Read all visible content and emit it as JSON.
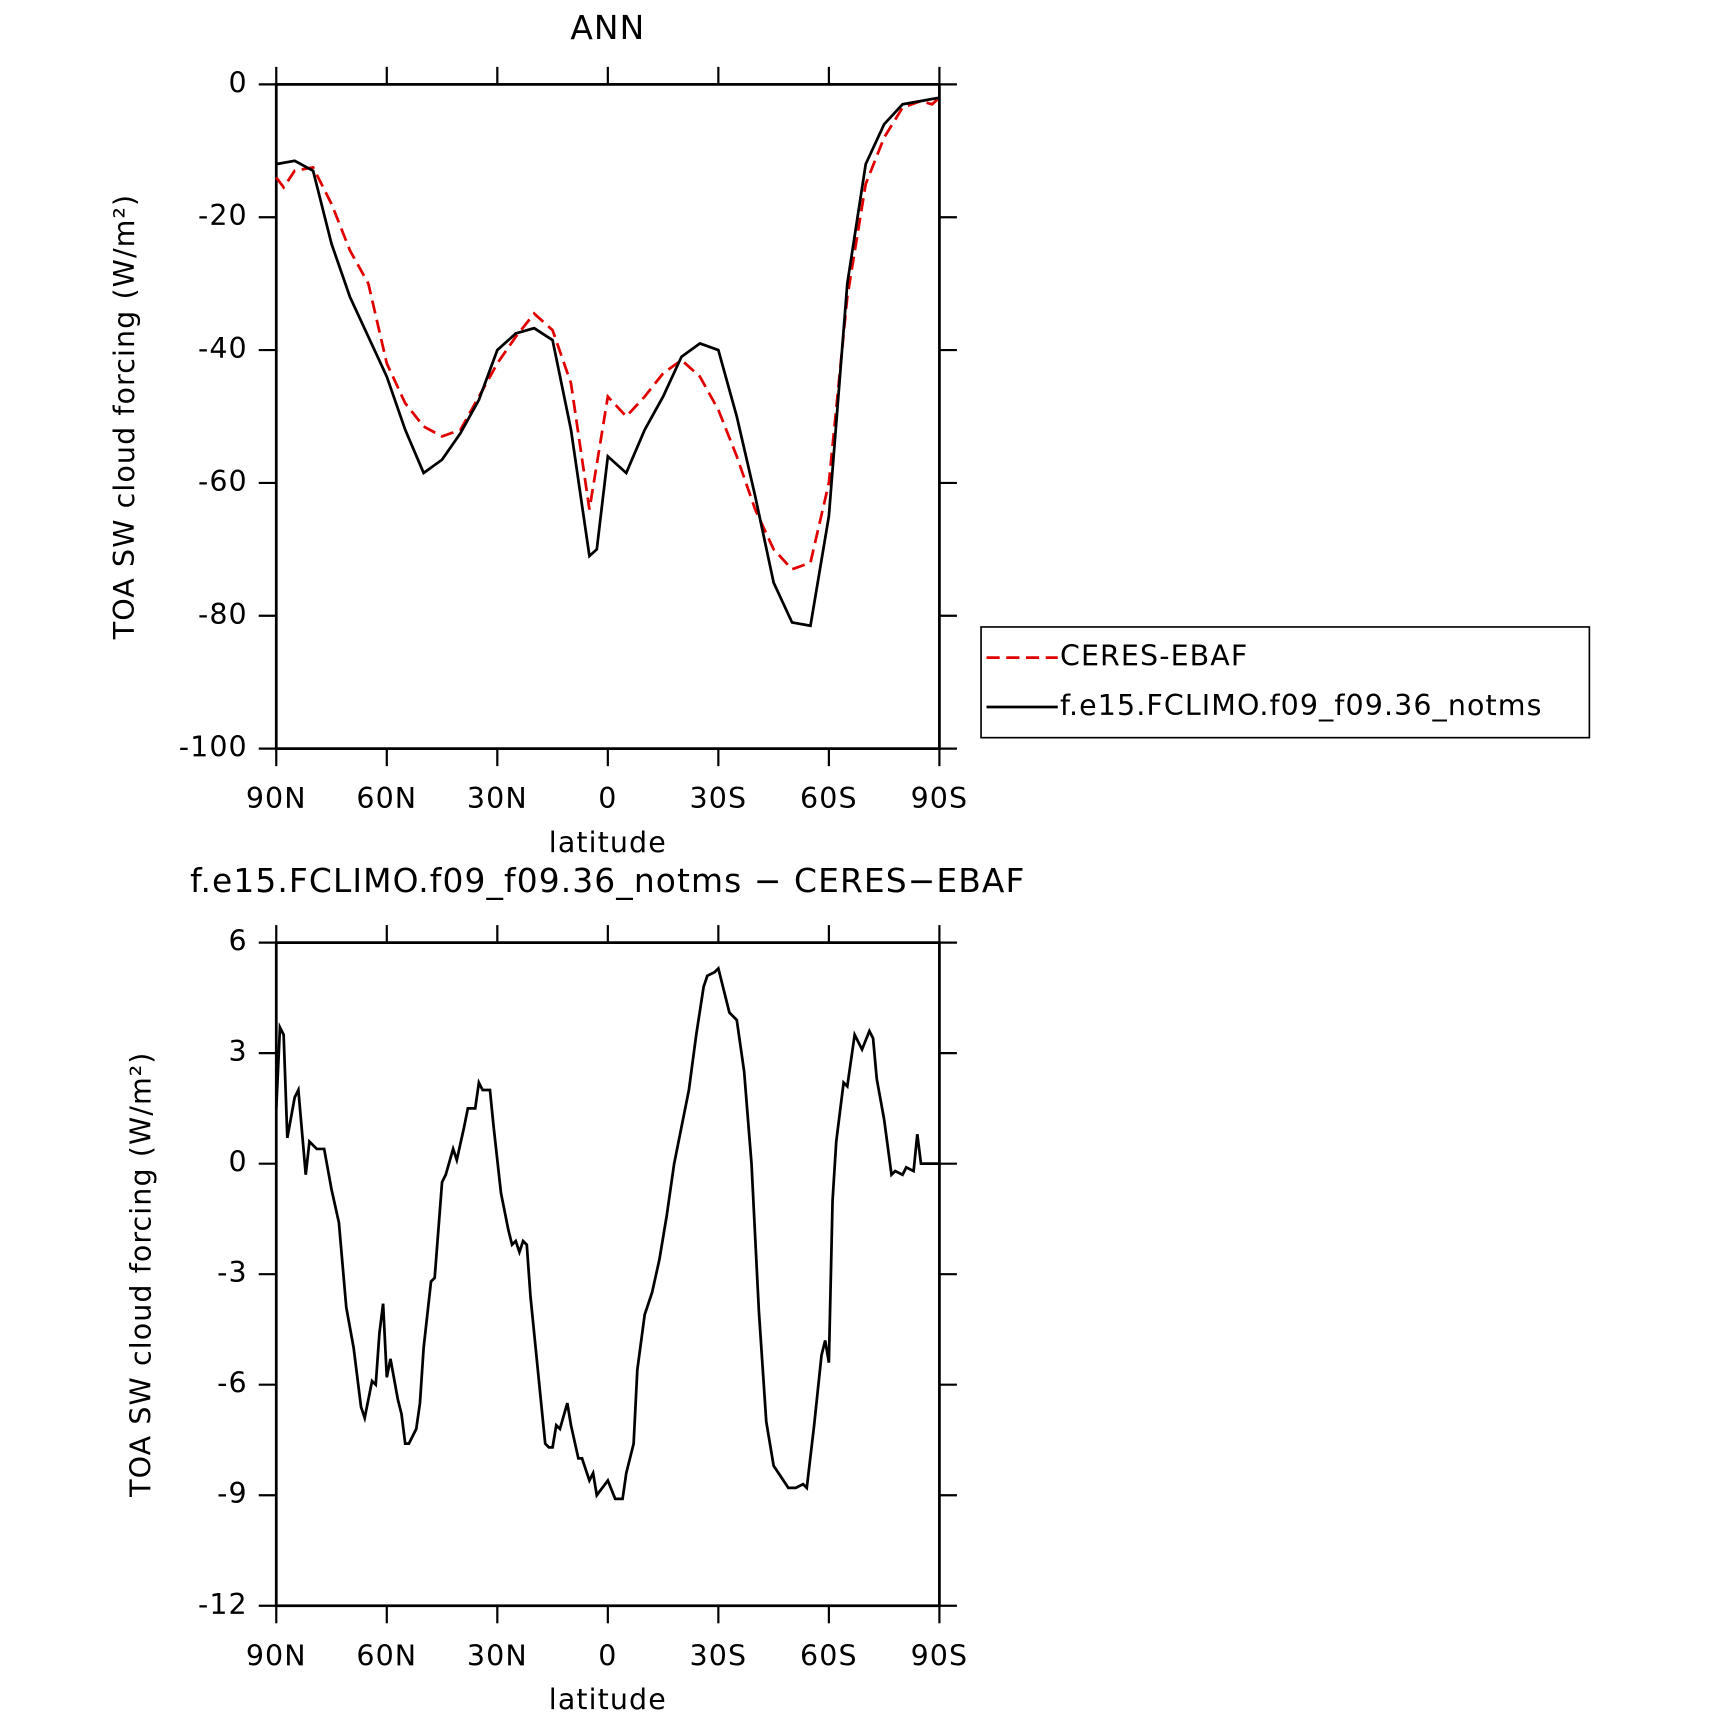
{
  "chart_data": [
    {
      "type": "line",
      "title": "ANN",
      "xlabel": "latitude",
      "ylabel": "TOA SW cloud forcing (W/m²)",
      "xlim": [
        90,
        -90
      ],
      "xticks": [
        {
          "value": 90,
          "label": "90N"
        },
        {
          "value": 60,
          "label": "60N"
        },
        {
          "value": 30,
          "label": "30N"
        },
        0,
        {
          "value": -30,
          "label": "30S"
        },
        {
          "value": -60,
          "label": "60S"
        },
        {
          "value": -90,
          "label": "90S"
        }
      ],
      "ylim": [
        -100,
        0
      ],
      "yticks": [
        -100,
        -80,
        -60,
        -40,
        -20,
        0
      ],
      "legend": "right",
      "series": [
        {
          "name": "CERES-EBAF",
          "color": "#e00000",
          "linestyle": "dashed",
          "x": [
            90,
            88,
            85,
            80,
            75,
            70,
            65,
            60,
            55,
            50,
            45,
            40,
            35,
            30,
            25,
            20,
            15,
            10,
            5,
            0,
            -5,
            -10,
            -15,
            -20,
            -25,
            -30,
            -35,
            -40,
            -45,
            -50,
            -55,
            -60,
            -65,
            -70,
            -75,
            -80,
            -85,
            -88,
            -90
          ],
          "values": [
            -14,
            -15.5,
            -13,
            -12.5,
            -18,
            -25,
            -30,
            -42,
            -48,
            -51.5,
            -53,
            -52,
            -47,
            -42,
            -38,
            -34.5,
            -37,
            -45,
            -64,
            -47,
            -50,
            -47,
            -43.5,
            -41.5,
            -44,
            -49,
            -56,
            -64,
            -70,
            -73,
            -72,
            -60,
            -32,
            -15,
            -8,
            -3.5,
            -2.5,
            -3,
            -2
          ]
        },
        {
          "name": "f.e15.FCLIMO.f09_f09.36_notms",
          "color": "#000000",
          "linestyle": "solid",
          "x": [
            90,
            85,
            80,
            75,
            70,
            65,
            60,
            55,
            50,
            45,
            40,
            35,
            30,
            25,
            20,
            15,
            10,
            5,
            3,
            0,
            -5,
            -10,
            -15,
            -20,
            -25,
            -30,
            -35,
            -40,
            -45,
            -50,
            -55,
            -60,
            -65,
            -70,
            -75,
            -80,
            -85,
            -90
          ],
          "values": [
            -12,
            -11.5,
            -13,
            -24,
            -32,
            -38,
            -44,
            -52,
            -58.5,
            -56.5,
            -52.5,
            -47.5,
            -40,
            -37.5,
            -36.7,
            -38.5,
            -52,
            -71,
            -70,
            -56,
            -58.5,
            -52,
            -47,
            -41,
            -39,
            -40,
            -50,
            -62,
            -75,
            -81,
            -81.5,
            -65,
            -30,
            -12,
            -6,
            -3,
            -2.5,
            -2
          ]
        }
      ]
    },
    {
      "type": "line",
      "title": "f.e15.FCLIMO.f09_f09.36_notms − CERES−EBAF",
      "xlabel": "latitude",
      "ylabel": "TOA SW cloud forcing (W/m²)",
      "xlim": [
        90,
        -90
      ],
      "xticks": [
        {
          "value": 90,
          "label": "90N"
        },
        {
          "value": 60,
          "label": "60N"
        },
        {
          "value": 30,
          "label": "30N"
        },
        0,
        {
          "value": -30,
          "label": "30S"
        },
        {
          "value": -60,
          "label": "60S"
        },
        {
          "value": -90,
          "label": "90S"
        }
      ],
      "ylim": [
        -12,
        6
      ],
      "yticks": [
        -12,
        -9,
        -6,
        -3,
        0,
        3,
        6
      ],
      "series": [
        {
          "color": "#000000",
          "linestyle": "solid",
          "x": [
            90,
            89,
            88,
            87,
            85,
            84,
            82,
            81,
            79,
            77,
            75,
            73,
            71,
            69,
            67,
            66,
            64,
            63,
            62,
            61,
            60,
            59,
            57,
            56,
            55,
            54,
            52,
            51,
            50,
            48,
            47,
            45,
            44,
            42,
            41,
            39,
            38,
            36,
            35,
            34,
            32,
            31,
            29,
            27,
            26,
            25,
            24,
            23,
            22,
            21,
            19,
            17,
            16,
            15,
            14,
            13,
            11,
            10,
            8,
            7,
            5,
            4,
            3,
            0,
            -2,
            -4,
            -5,
            -7,
            -8,
            -10,
            -12,
            -14,
            -16,
            -18,
            -20,
            -22,
            -24,
            -26,
            -27,
            -29,
            -30,
            -32,
            -33,
            -35,
            -37,
            -39,
            -41,
            -43,
            -45,
            -47,
            -49,
            -51,
            -53,
            -54,
            -56,
            -58,
            -59,
            -60,
            -61,
            -62,
            -64,
            -65,
            -67,
            -69,
            -71,
            -72,
            -73,
            -75,
            -77,
            -78,
            -80,
            -81,
            -83,
            -84,
            -85,
            -90
          ],
          "values": [
            1.5,
            3.7,
            3.5,
            0.7,
            1.8,
            2,
            -0.3,
            0.6,
            0.4,
            0.4,
            -0.7,
            -1.6,
            -3.9,
            -5,
            -6.6,
            -6.9,
            -5.9,
            -6,
            -4.6,
            -3.8,
            -5.8,
            -5.3,
            -6.4,
            -6.8,
            -7.6,
            -7.6,
            -7.2,
            -6.5,
            -5,
            -3.2,
            -3.1,
            -0.5,
            -0.3,
            0.4,
            0.1,
            1,
            1.5,
            1.5,
            2.2,
            2,
            2,
            1,
            -0.8,
            -1.8,
            -2.2,
            -2.1,
            -2.4,
            -2.1,
            -2.2,
            -3.6,
            -5.6,
            -7.6,
            -7.7,
            -7.7,
            -7.1,
            -7.2,
            -6.5,
            -7.1,
            -8,
            -8,
            -8.6,
            -8.4,
            -9,
            -8.6,
            -9.1,
            -9.1,
            -8.4,
            -7.6,
            -5.6,
            -4.1,
            -3.5,
            -2.6,
            -1.4,
            0,
            1,
            2,
            3.5,
            4.8,
            5.1,
            5.2,
            5.3,
            4.5,
            4.1,
            3.9,
            2.5,
            0,
            -4,
            -7,
            -8.2,
            -8.5,
            -8.8,
            -8.8,
            -8.7,
            -8.8,
            -7.1,
            -5.2,
            -4.8,
            -5.4,
            -1,
            0.6,
            2.2,
            2.1,
            3.5,
            3.1,
            3.6,
            3.4,
            2.3,
            1.2,
            -0.3,
            -0.2,
            -0.3,
            -0.1,
            -0.2,
            0.8,
            0,
            0
          ]
        }
      ]
    }
  ]
}
